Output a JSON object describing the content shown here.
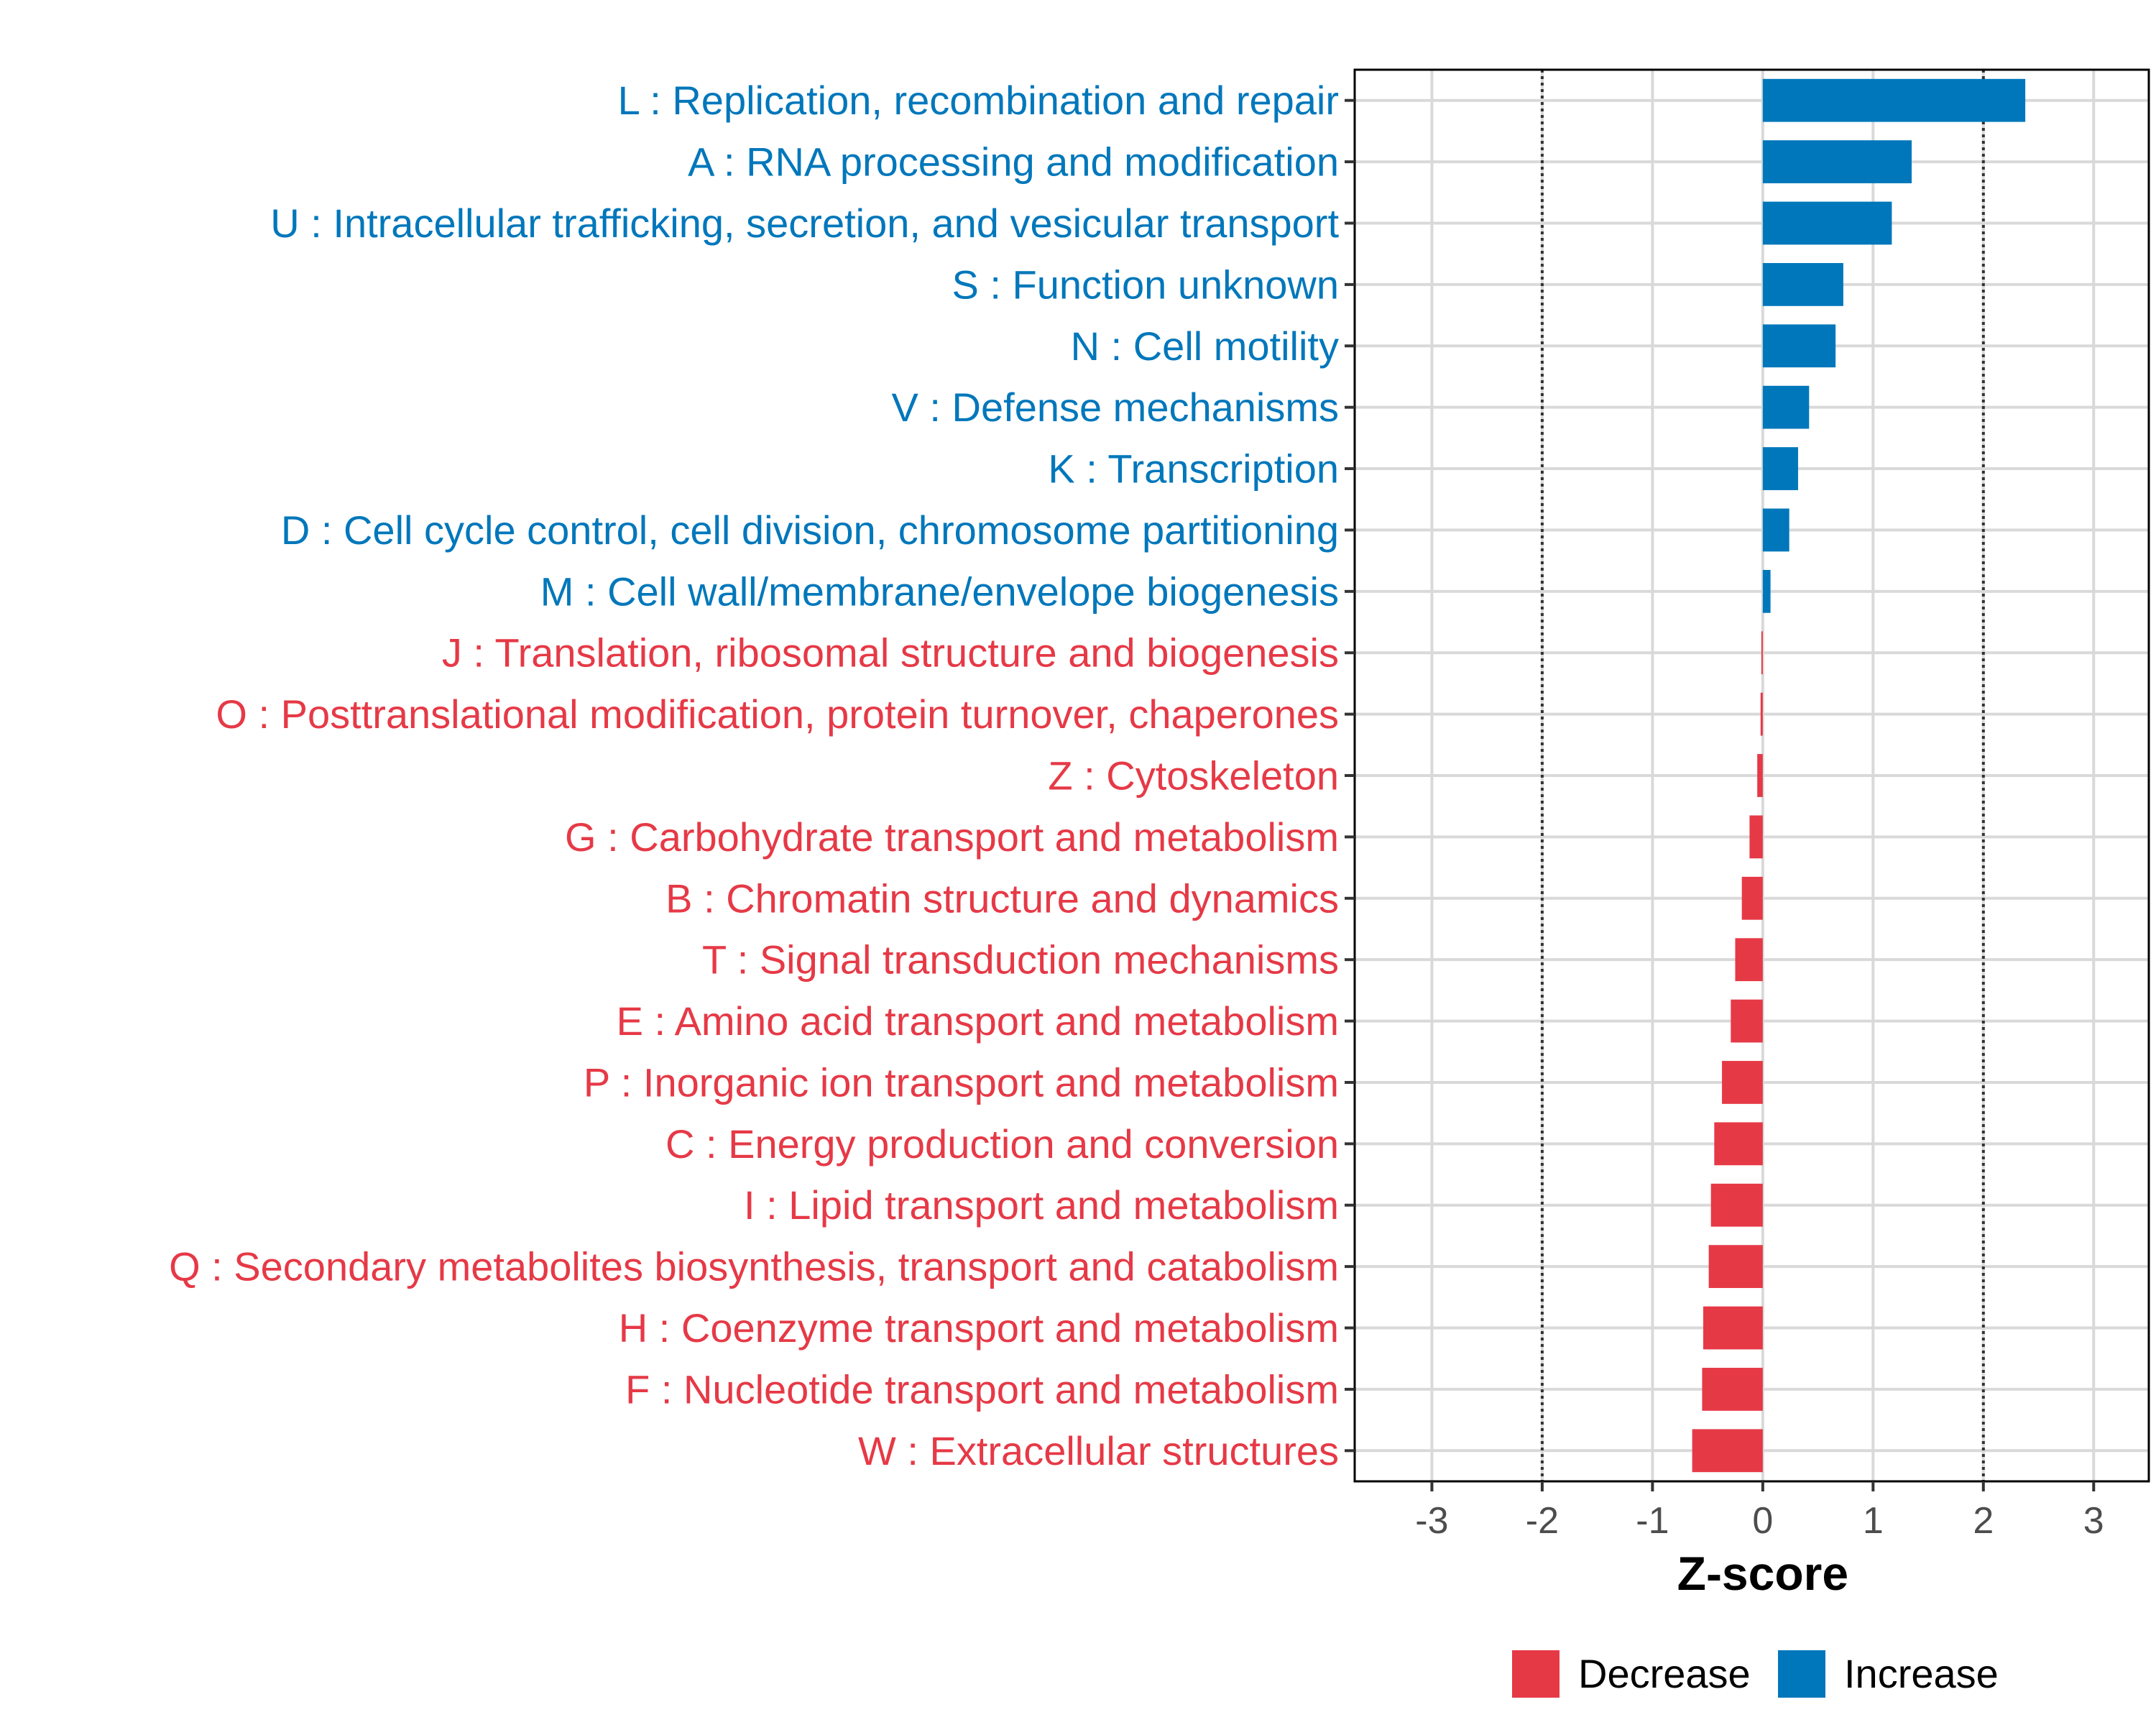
{
  "chart_data": {
    "type": "bar",
    "orientation": "horizontal",
    "title": "",
    "xlabel": "Z-score",
    "ylabel": "",
    "xlim": [
      -3.7,
      3.5
    ],
    "xticks": [
      -3,
      -2,
      -1,
      0,
      1,
      2,
      3
    ],
    "grid": true,
    "reference_lines": [
      -2,
      2
    ],
    "colors": {
      "Decrease": "#e63946",
      "Increase": "#0077bb"
    },
    "categories": [
      "L : Replication, recombination and repair",
      "A : RNA processing and modification",
      "U : Intracellular trafficking, secretion, and vesicular transport",
      "S : Function unknown",
      "N : Cell motility",
      "V : Defense mechanisms",
      "K : Transcription",
      "D : Cell cycle control, cell division, chromosome partitioning",
      "M : Cell wall/membrane/envelope biogenesis",
      "J : Translation, ribosomal structure and biogenesis",
      "O : Posttranslational modification, protein turnover, chaperones",
      "Z : Cytoskeleton",
      "G : Carbohydrate transport and metabolism",
      "B : Chromatin structure and dynamics",
      "T : Signal transduction mechanisms",
      "E : Amino acid transport and metabolism",
      "P : Inorganic ion transport and metabolism",
      "C : Energy production and conversion",
      "I : Lipid transport and metabolism",
      "Q : Secondary metabolites biosynthesis, transport and catabolism",
      "H : Coenzyme transport and metabolism",
      "F : Nucleotide transport and metabolism",
      "W : Extracellular structures"
    ],
    "values": [
      2.38,
      1.35,
      1.17,
      0.73,
      0.66,
      0.42,
      0.32,
      0.24,
      0.07,
      -0.01,
      -0.02,
      -0.05,
      -0.12,
      -0.19,
      -0.25,
      -0.29,
      -0.37,
      -0.44,
      -0.47,
      -0.49,
      -0.54,
      -0.55,
      -0.64
    ],
    "groups": [
      "Increase",
      "Increase",
      "Increase",
      "Increase",
      "Increase",
      "Increase",
      "Increase",
      "Increase",
      "Increase",
      "Decrease",
      "Decrease",
      "Decrease",
      "Decrease",
      "Decrease",
      "Decrease",
      "Decrease",
      "Decrease",
      "Decrease",
      "Decrease",
      "Decrease",
      "Decrease",
      "Decrease",
      "Decrease"
    ],
    "legend": {
      "position": "bottom-right",
      "entries": [
        "Decrease",
        "Increase"
      ]
    }
  }
}
